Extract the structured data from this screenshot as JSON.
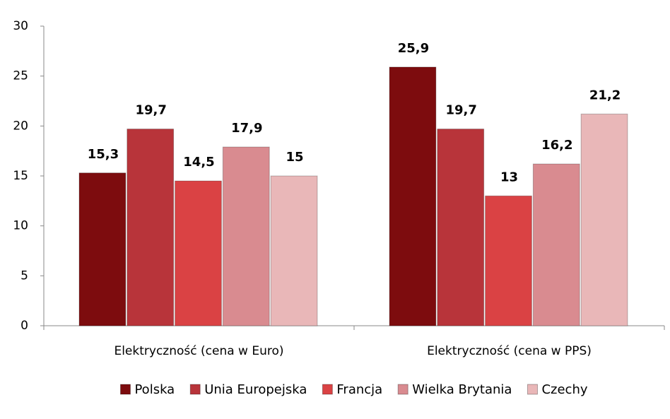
{
  "chart_data": {
    "type": "bar",
    "categories": [
      "Elektryczność (cena w Euro)",
      "Elektryczność (cena w PPS)"
    ],
    "series": [
      {
        "name": "Polska",
        "color": "#7d0c0e",
        "values": [
          15.3,
          25.9
        ],
        "value_labels": [
          "15,3",
          "25,9"
        ]
      },
      {
        "name": "Unia Europejska",
        "color": "#b8343a",
        "values": [
          19.7,
          19.7
        ],
        "value_labels": [
          "19,7",
          "19,7"
        ]
      },
      {
        "name": "Francja",
        "color": "#da4244",
        "values": [
          14.5,
          13
        ],
        "value_labels": [
          "14,5",
          "13"
        ]
      },
      {
        "name": "Wielka Brytania",
        "color": "#d98b90",
        "values": [
          17.9,
          16.2
        ],
        "value_labels": [
          "17,9",
          "16,2"
        ]
      },
      {
        "name": "Czechy",
        "color": "#e9b7b8",
        "values": [
          15,
          21.2
        ],
        "value_labels": [
          "15",
          "21,2"
        ]
      }
    ],
    "ylim": [
      0,
      30
    ],
    "yticks": [
      0,
      5,
      10,
      15,
      20,
      25,
      30
    ],
    "grid": false,
    "legend": "bottom"
  }
}
